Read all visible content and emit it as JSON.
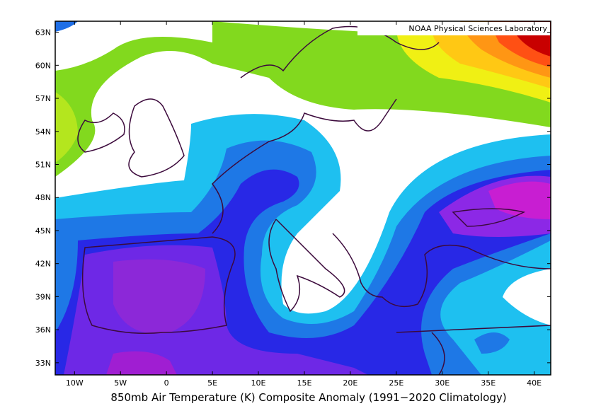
{
  "map": {
    "credit": "NOAA Physical Sciences Laboratory",
    "title": "850mb Air Temperature (K) Composite Anomaly (1991−2020 Climatology)",
    "lon_ticks": [
      {
        "value": -10,
        "label": "10W"
      },
      {
        "value": -5,
        "label": "5W"
      },
      0,
      {
        "value": 5,
        "label": "5E"
      },
      {
        "value": 10,
        "label": "10E"
      },
      {
        "value": 15,
        "label": "15E"
      },
      {
        "value": 20,
        "label": "20E"
      },
      {
        "value": 25,
        "label": "25E"
      },
      {
        "value": 30,
        "label": "30E"
      },
      {
        "value": 35,
        "label": "35E"
      },
      {
        "value": 40,
        "label": "40E"
      }
    ],
    "lat_ticks": [
      {
        "value": 33,
        "label": "33N"
      },
      {
        "value": 36,
        "label": "36N"
      },
      {
        "value": 39,
        "label": "39N"
      },
      {
        "value": 42,
        "label": "42N"
      },
      {
        "value": 45,
        "label": "45N"
      },
      {
        "value": 48,
        "label": "48N"
      },
      {
        "value": 51,
        "label": "51N"
      },
      {
        "value": 54,
        "label": "54N"
      },
      {
        "value": 57,
        "label": "57N"
      },
      {
        "value": 60,
        "label": "60N"
      },
      {
        "value": 63,
        "label": "63N"
      }
    ]
  }
}
